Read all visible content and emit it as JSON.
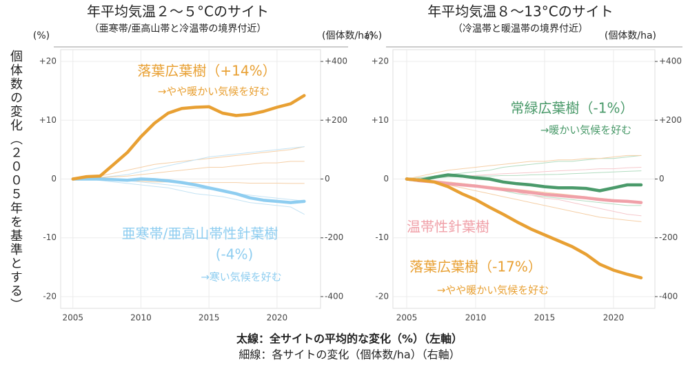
{
  "chart_data": [
    {
      "type": "line",
      "title": "年平均気温２～５°Cのサイト",
      "subtitle": "（亜寒帯/亜高山帯と冷温帯の境界付近）",
      "ylabel": "個体数の変化（２００５年を基準とする）",
      "yunit": "(%)",
      "y2unit": "(個体数/ha)",
      "x": [
        2005,
        2006,
        2007,
        2008,
        2009,
        2010,
        2011,
        2012,
        2013,
        2014,
        2015,
        2016,
        2017,
        2018,
        2019,
        2020,
        2021,
        2022
      ],
      "xlim": [
        2004.1,
        2023.2
      ],
      "xticks": [
        2005,
        2010,
        2015,
        2020
      ],
      "ylim": [
        -22,
        22
      ],
      "yticks": [
        {
          "value": 20,
          "label": "+20"
        },
        {
          "value": 10,
          "label": "+10"
        },
        0,
        -10,
        -20
      ],
      "y2lim": [
        -440,
        440
      ],
      "y2ticks": [
        {
          "value": 400,
          "label": "+400"
        },
        {
          "value": 200,
          "label": "+200"
        },
        0,
        -200,
        -400
      ],
      "grid": true,
      "series": [
        {
          "axis": "y2",
          "color": "#f5cfa6",
          "values": [
            0,
            5,
            10,
            20,
            30,
            40,
            50,
            55,
            60,
            65,
            70,
            75,
            80,
            85,
            90,
            95,
            100,
            110
          ]
        },
        {
          "axis": "y2",
          "color": "#c4e3f4",
          "values": [
            0,
            2,
            5,
            10,
            15,
            25,
            35,
            45,
            55,
            65,
            75,
            80,
            85,
            90,
            95,
            100,
            105,
            110
          ]
        },
        {
          "axis": "y2",
          "color": "#f5cfa6",
          "values": [
            0,
            -2,
            -3,
            -5,
            -5,
            -8,
            -10,
            -10,
            -12,
            -12,
            -12,
            -12,
            -12,
            -14,
            -14,
            -14,
            -15,
            -15
          ]
        },
        {
          "axis": "y2",
          "color": "#c4e3f4",
          "values": [
            0,
            0,
            -5,
            -10,
            -15,
            -20,
            -25,
            -30,
            -40,
            -50,
            -55,
            -60,
            -70,
            -80,
            -85,
            -90,
            -95,
            -120
          ]
        },
        {
          "axis": "y2",
          "color": "#f5cfa6",
          "values": [
            0,
            3,
            5,
            8,
            10,
            15,
            20,
            25,
            30,
            35,
            40,
            40,
            45,
            50,
            55,
            55,
            60,
            60
          ]
        },
        {
          "axis": "y2",
          "color": "#c4e3f4",
          "values": [
            0,
            0,
            -2,
            -4,
            -6,
            -10,
            -15,
            -20,
            -25,
            -30,
            -35,
            -40,
            -50,
            -55,
            -60,
            -65,
            -70,
            -75
          ]
        },
        {
          "color": "#8ecdf0",
          "label": [
            "亜寒帯/亜高山帯性針葉樹",
            "(-4%)"
          ],
          "note": "→寒い気候を好む",
          "values": [
            0,
            0,
            0,
            -0.1,
            -0.2,
            0,
            -0.1,
            -0.3,
            -0.6,
            -1,
            -1.5,
            -2,
            -2.5,
            -3.2,
            -3.6,
            -3.8,
            -4,
            -3.8
          ]
        },
        {
          "color": "#e8a033",
          "label": [
            "落葉広葉樹（+14%）"
          ],
          "note": "→やや暖かい気候を好む",
          "values": [
            0,
            0.4,
            0.5,
            2.5,
            4.5,
            7.2,
            9.5,
            11.2,
            12,
            12.2,
            12.3,
            11.2,
            10.8,
            11,
            11.5,
            12.2,
            12.8,
            14.2
          ]
        }
      ]
    },
    {
      "type": "line",
      "title": "年平均気温８～13°Cのサイト",
      "subtitle": "（冷温帯と暖温帯の境界付近）",
      "yunit": "(%)",
      "y2unit": "(個体数/ha)",
      "x": [
        2005,
        2006,
        2007,
        2008,
        2009,
        2010,
        2011,
        2012,
        2013,
        2014,
        2015,
        2016,
        2017,
        2018,
        2019,
        2020,
        2021,
        2022
      ],
      "xlim": [
        2004,
        2023
      ],
      "xticks": [
        2005,
        2010,
        2015,
        2020
      ],
      "ylim": [
        -22,
        22
      ],
      "yticks": [
        {
          "value": 20,
          "label": "+20"
        },
        {
          "value": 10,
          "label": "+10"
        },
        0,
        -10,
        -20
      ],
      "y2lim": [
        -440,
        440
      ],
      "y2ticks": [
        {
          "value": 400,
          "label": "+400"
        },
        {
          "value": 200,
          "label": "+200"
        },
        0,
        -200,
        -400
      ],
      "grid": true,
      "series": [
        {
          "axis": "y2",
          "color": "#b2dcc0",
          "values": [
            0,
            5,
            10,
            15,
            20,
            25,
            30,
            40,
            45,
            50,
            55,
            60,
            60,
            65,
            70,
            70,
            75,
            80
          ]
        },
        {
          "axis": "y2",
          "color": "#b2dcc0",
          "values": [
            0,
            -5,
            -10,
            -15,
            -20,
            -25,
            -30,
            -40,
            -50,
            -55,
            -60,
            -65,
            -70,
            -75,
            -80,
            -85,
            -90,
            -90
          ]
        },
        {
          "axis": "y2",
          "color": "#f6c8cc",
          "values": [
            0,
            -2,
            -5,
            -10,
            -15,
            -20,
            -25,
            -35,
            -45,
            -55,
            -65,
            -70,
            -80,
            -90,
            -100,
            -110,
            -120,
            -125
          ]
        },
        {
          "axis": "y2",
          "color": "#f5cfa6",
          "values": [
            0,
            10,
            20,
            30,
            35,
            40,
            45,
            50,
            55,
            60,
            60,
            65,
            65,
            70,
            70,
            75,
            80,
            80
          ]
        },
        {
          "axis": "y2",
          "color": "#f5cfa6",
          "values": [
            0,
            -5,
            -10,
            -20,
            -30,
            -40,
            -50,
            -60,
            -70,
            -80,
            -90,
            -100,
            -110,
            -120,
            -130,
            -135,
            -140,
            -145
          ]
        },
        {
          "axis": "y2",
          "color": "#f6c8cc",
          "values": [
            0,
            3,
            5,
            8,
            10,
            12,
            15,
            18,
            20,
            22,
            25,
            28,
            30,
            32,
            35,
            35,
            38,
            40
          ]
        },
        {
          "axis": "y2",
          "color": "#b2dcc0",
          "values": [
            0,
            2,
            4,
            6,
            8,
            10,
            10,
            12,
            12,
            14,
            15,
            16,
            18,
            20,
            22,
            24,
            26,
            28
          ]
        },
        {
          "axis": "y2",
          "color": "#f5cfa6",
          "values": [
            0,
            -3,
            -6,
            -10,
            -15,
            -20,
            -25,
            -30,
            -35,
            -40,
            -45,
            -50,
            -55,
            -60,
            -65,
            -70,
            -75,
            -80
          ]
        },
        {
          "color": "#f0a0a8",
          "label": [
            "温帯性針葉樹"
          ],
          "values": [
            0,
            -0.3,
            -0.5,
            -0.8,
            -1,
            -1.2,
            -1.5,
            -1.8,
            -2,
            -2.3,
            -2.6,
            -2.8,
            -3,
            -3.2,
            -3.5,
            -3.7,
            -3.8,
            -4.0
          ]
        },
        {
          "color": "#4a9a6a",
          "label": [
            "常緑広葉樹（-1%）"
          ],
          "note": "→暖かい気候を好む",
          "values": [
            0,
            -0.2,
            0.3,
            0.7,
            0.5,
            0.2,
            0,
            -0.5,
            -0.8,
            -1,
            -1.3,
            -1.5,
            -1.5,
            -1.6,
            -2,
            -1.5,
            -1,
            -1.0
          ]
        },
        {
          "color": "#e8a033",
          "label": [
            "落葉広葉樹（-17%）"
          ],
          "note": "→やや暖かい気候を好む",
          "values": [
            0,
            -0.2,
            -0.5,
            -1.3,
            -2.5,
            -3.5,
            -4.8,
            -6,
            -7.3,
            -8.5,
            -9.5,
            -10.5,
            -11.5,
            -12.8,
            -14.5,
            -15.5,
            -16.2,
            -16.8
          ]
        }
      ]
    }
  ],
  "caption": [
    "太線：全サイトの平均的な変化（%）（左軸）",
    "細線：各サイトの変化（個体数/ha）（右軸）"
  ]
}
